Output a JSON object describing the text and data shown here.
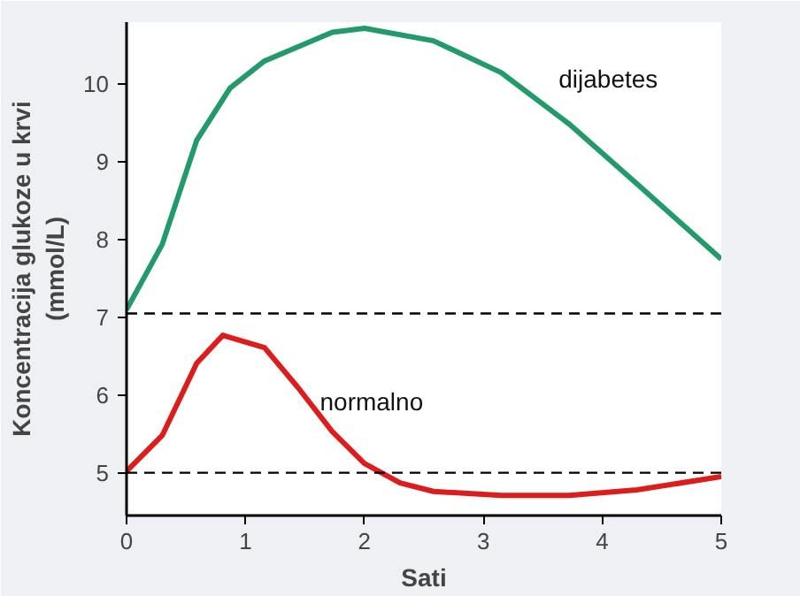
{
  "chart_data": {
    "type": "line",
    "xlabel": "Sati",
    "ylabel": "Koncentracija glukoze u krvi\n(mmol/L)",
    "xlim": [
      0,
      5
    ],
    "xticks": [
      0,
      1,
      2,
      3,
      4,
      5
    ],
    "ylim": [
      4.45,
      10.8
    ],
    "yticks": [
      5,
      6,
      7,
      8,
      9,
      10
    ],
    "grid": false,
    "marker": "none",
    "line_style": "solid",
    "series": [
      {
        "name": "dijabetes",
        "color": "#239a6a",
        "x": [
          0,
          0.3,
          0.59,
          0.87,
          1.16,
          1.73,
          2.0,
          2.58,
          3.15,
          3.72,
          4.29,
          5
        ],
        "values": [
          7.1,
          7.94,
          9.28,
          9.95,
          10.3,
          10.67,
          10.72,
          10.56,
          10.15,
          9.49,
          8.72,
          7.75
        ]
      },
      {
        "name": "normalno",
        "color": "#dd1c1c",
        "x": [
          0,
          0.3,
          0.59,
          0.81,
          1.16,
          1.44,
          1.73,
          2.0,
          2.3,
          2.58,
          3.15,
          3.72,
          4.29,
          5
        ],
        "values": [
          5.02,
          5.48,
          6.41,
          6.77,
          6.61,
          6.1,
          5.53,
          5.12,
          4.87,
          4.76,
          4.71,
          4.71,
          4.78,
          4.95
        ]
      }
    ],
    "ref_lines": [
      {
        "axis": "y",
        "value": 7.05,
        "color": "#000000",
        "line_style": "dashed"
      },
      {
        "axis": "y",
        "value": 5.0,
        "color": "#000000",
        "line_style": "dashed"
      }
    ]
  }
}
